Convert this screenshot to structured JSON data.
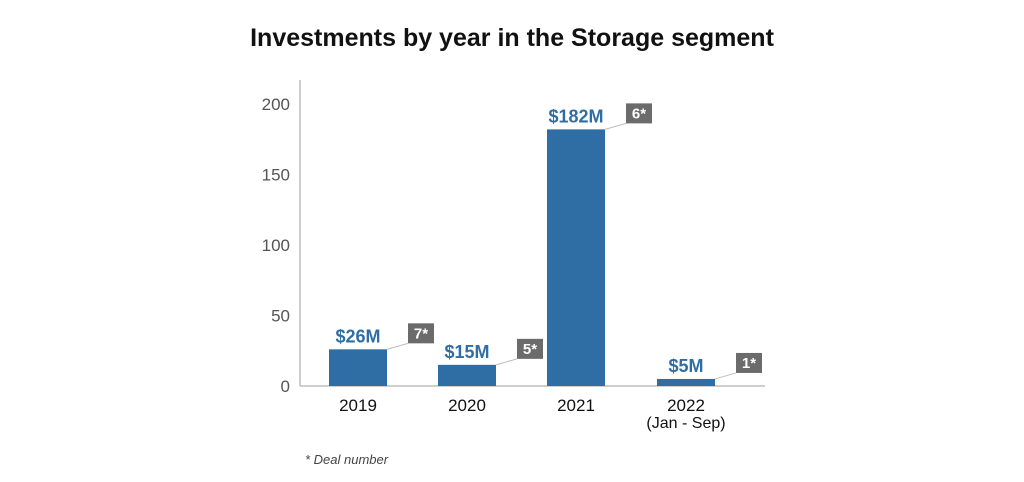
{
  "title": "Investments by year in the Storage segment",
  "footnote": "* Deal number",
  "colors": {
    "bar": "#2e6ea5",
    "badge": "#6b6b6b",
    "axis": "#bdbdbd",
    "tick_text": "#555555"
  },
  "chart_data": {
    "type": "bar",
    "title": "Investments by year in the Storage segment",
    "xlabel": "",
    "ylabel": "",
    "ylim": [
      0,
      210
    ],
    "yticks": [
      0,
      50,
      100,
      150,
      200
    ],
    "ytick_labels": [
      "0",
      "50",
      "100",
      "150",
      "200"
    ],
    "categories": [
      "2019",
      "2020",
      "2021",
      "2022"
    ],
    "category_sublabels": [
      "",
      "",
      "",
      "(Jan - Sep)"
    ],
    "values": [
      26,
      15,
      182,
      5
    ],
    "value_labels": [
      "$26M",
      "$15M",
      "$182M",
      "$5M"
    ],
    "deal_counts": [
      7,
      5,
      6,
      1
    ],
    "deal_labels": [
      "7*",
      "5*",
      "6*",
      "1*"
    ],
    "grid": false,
    "legend": "none"
  }
}
